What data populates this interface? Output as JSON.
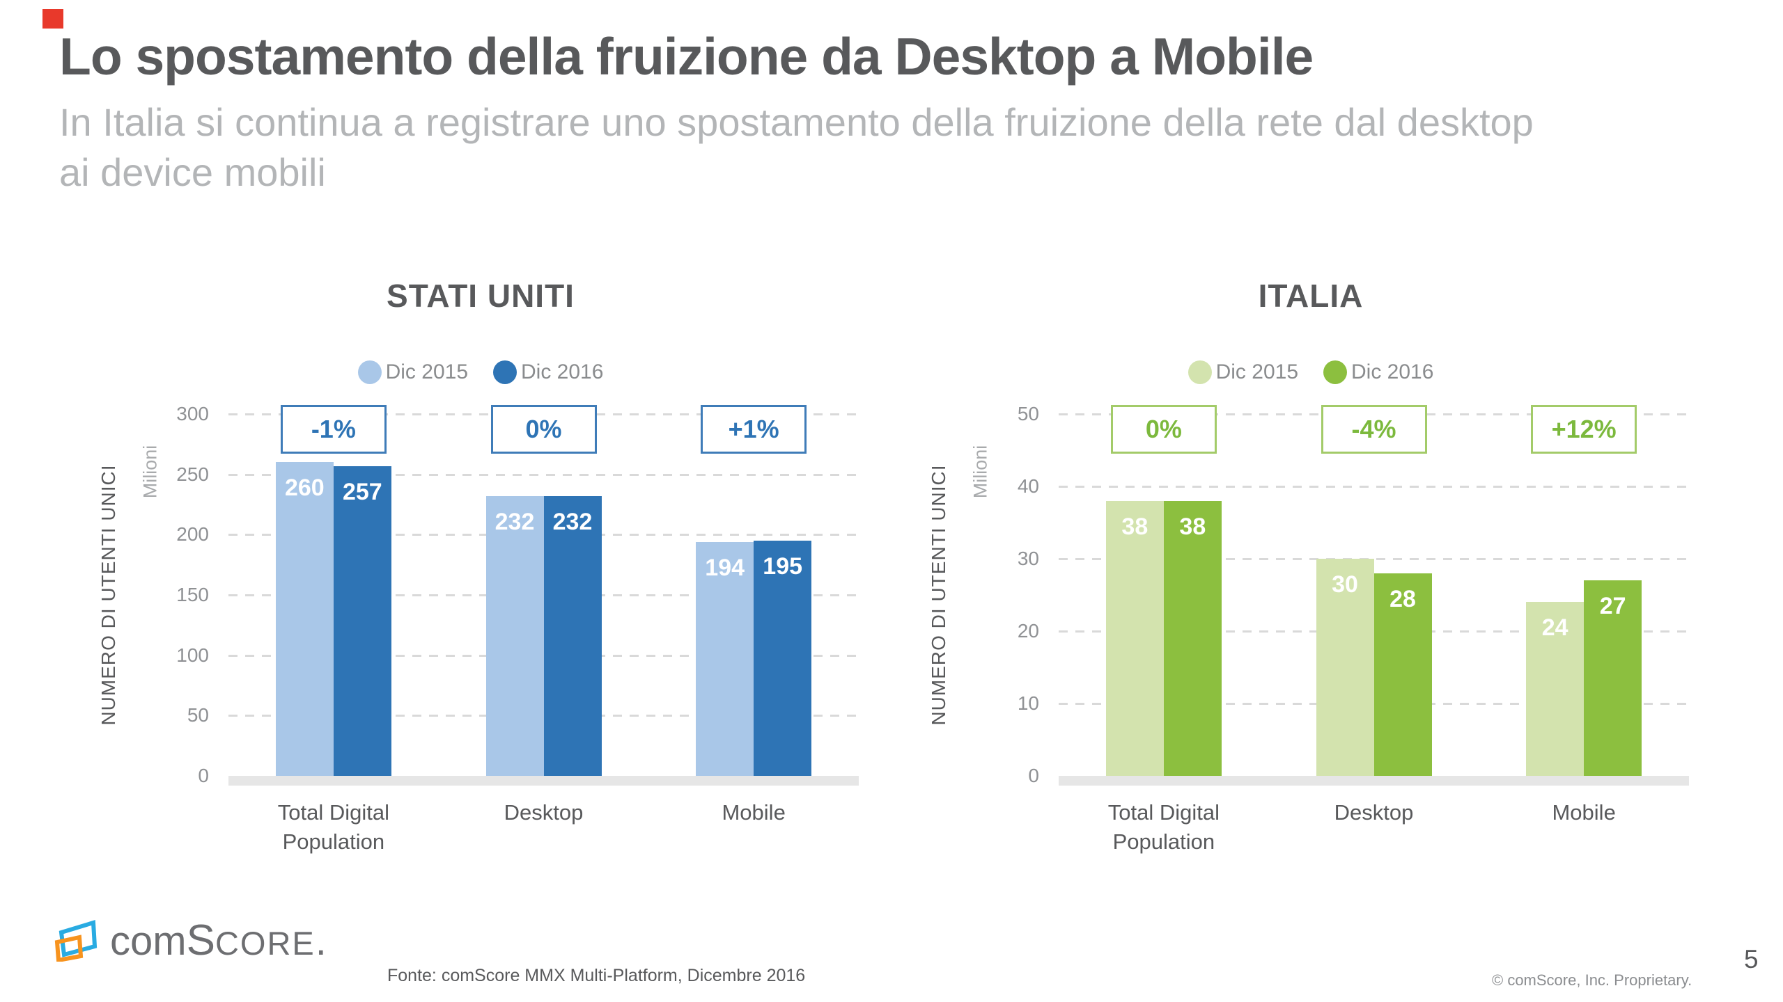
{
  "badge_color": "#e8392b",
  "header": {
    "title": "Lo spostamento della fruizione da Desktop a Mobile",
    "subtitle_line1": "In Italia si continua a registrare uno spostamento della fruizione della rete dal desktop",
    "subtitle_line2": "ai device mobili"
  },
  "chart_data": [
    {
      "type": "bar",
      "title": "STATI UNITI",
      "legend": [
        {
          "label": "Dic 2015",
          "color": "#a9c7e8"
        },
        {
          "label": "Dic 2016",
          "color": "#2e74b5"
        }
      ],
      "ylabel": "NUMERO DI UTENTI UNICI",
      "yunit": "Milioni",
      "ylim": [
        0,
        300
      ],
      "yticks": [
        300,
        250,
        200,
        150,
        100,
        50,
        0
      ],
      "grid": true,
      "legend_position": "top",
      "categories": [
        [
          "Total Digital",
          "Population"
        ],
        [
          "Desktop"
        ],
        [
          "Mobile"
        ]
      ],
      "series": [
        {
          "name": "Dic 2015",
          "color": "#a9c7e8",
          "values": [
            260,
            232,
            194
          ]
        },
        {
          "name": "Dic 2016",
          "color": "#2e74b5",
          "values": [
            257,
            232,
            195
          ]
        }
      ],
      "deltas": [
        "-1%",
        "0%",
        "+1%"
      ],
      "delta_text_color": "#2e74b5",
      "delta_border_color": "#3f7cb8"
    },
    {
      "type": "bar",
      "title": "ITALIA",
      "legend": [
        {
          "label": "Dic 2015",
          "color": "#d3e3ae"
        },
        {
          "label": "Dic 2016",
          "color": "#8cbf3f"
        }
      ],
      "ylabel": "NUMERO DI UTENTI UNICI",
      "yunit": "Milioni",
      "ylim": [
        0,
        50
      ],
      "yticks": [
        50,
        40,
        30,
        20,
        10,
        0
      ],
      "grid": true,
      "legend_position": "top",
      "categories": [
        [
          "Total Digital",
          "Population"
        ],
        [
          "Desktop"
        ],
        [
          "Mobile"
        ]
      ],
      "series": [
        {
          "name": "Dic 2015",
          "color": "#d3e3ae",
          "values": [
            38,
            30,
            24
          ]
        },
        {
          "name": "Dic 2016",
          "color": "#8cbf3f",
          "values": [
            38,
            28,
            27
          ]
        }
      ],
      "deltas": [
        "0%",
        "-4%",
        "+12%"
      ],
      "delta_text_color": "#7cb93d",
      "delta_border_color": "#a3cb69"
    }
  ],
  "footer": {
    "logo_com": "com",
    "logo_s": "S",
    "logo_core": "CORE",
    "logo_dot": ".",
    "source": "Fonte: comScore MMX Multi-Platform, Dicembre 2016",
    "copyright": "© comScore, Inc. Proprietary.",
    "page_number": "5"
  }
}
